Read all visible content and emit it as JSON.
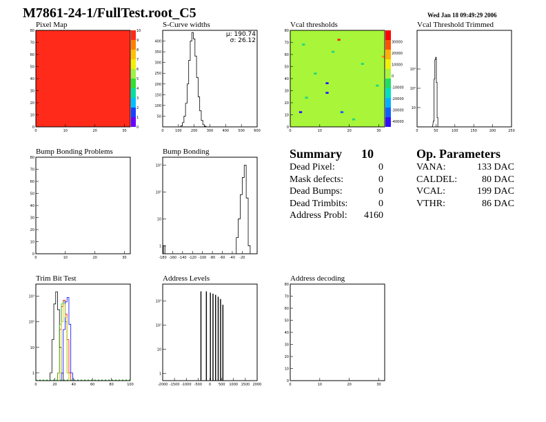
{
  "header": {
    "title": "M7861-24-1/FullTest.root_C5",
    "date": "Wed Jan 18 09:49:29 2006"
  },
  "summary": {
    "title": "Summary",
    "total": "10",
    "rows": [
      {
        "label": "Dead Pixel:",
        "value": "0"
      },
      {
        "label": "Mask defects:",
        "value": "0"
      },
      {
        "label": "Dead Bumps:",
        "value": "0"
      },
      {
        "label": "Dead Trimbits:",
        "value": "0"
      },
      {
        "label": "Address Probl:",
        "value": "4160"
      }
    ]
  },
  "op_parameters": {
    "title": "Op. Parameters",
    "rows": [
      {
        "label": "VANA:",
        "value": "133 DAC"
      },
      {
        "label": "CALDEL:",
        "value": "80 DAC"
      },
      {
        "label": "VCAL:",
        "value": "199 DAC"
      },
      {
        "label": "VTHR:",
        "value": "86 DAC"
      }
    ]
  },
  "colors": {
    "pixel_map_fill": "#ff2a1a",
    "vcal_fill": "#a8f53a",
    "trim_bit_black": "#000000",
    "trim_bit_red": "#ff0000",
    "trim_bit_green": "#22bb22",
    "trim_bit_blue": "#0000ff",
    "trim_bit_yellow": "#cccc00"
  },
  "chart_data": [
    {
      "id": "pixel_map",
      "type": "heatmap",
      "title": "Pixel Map",
      "xlim": [
        0,
        32
      ],
      "ylim": [
        0,
        80
      ],
      "xticks": [
        "0",
        "10",
        "20",
        "30"
      ],
      "yticks": [
        "0",
        "10",
        "20",
        "30",
        "40",
        "50",
        "60",
        "70",
        "80"
      ],
      "zticks": [
        "0",
        "1",
        "2",
        "3",
        "4",
        "5",
        "6",
        "7",
        "8",
        "9",
        "10"
      ],
      "value_all_pixels": 10
    },
    {
      "id": "scurve_widths",
      "type": "line",
      "title": "S-Curve widths",
      "xlim": [
        0,
        600
      ],
      "ylim": [
        0,
        450
      ],
      "xticks": [
        "0",
        "100",
        "200",
        "300",
        "400",
        "500",
        "600"
      ],
      "yticks": [
        "50",
        "100",
        "150",
        "200",
        "250",
        "300",
        "350",
        "400"
      ],
      "stats": [
        "μ: 190.74",
        "σ: 26.12"
      ],
      "x": [
        120,
        130,
        140,
        150,
        160,
        170,
        180,
        190,
        200,
        210,
        220,
        230,
        240,
        250,
        260,
        270
      ],
      "values": [
        5,
        20,
        50,
        110,
        200,
        310,
        400,
        440,
        410,
        330,
        230,
        140,
        75,
        30,
        10,
        3
      ]
    },
    {
      "id": "vcal_thresholds",
      "type": "heatmap",
      "title": "Vcal thresholds",
      "xlim": [
        0,
        32
      ],
      "ylim": [
        0,
        80
      ],
      "xticks": [
        "0",
        "10",
        "20",
        "30"
      ],
      "yticks": [
        "0",
        "10",
        "20",
        "30",
        "40",
        "50",
        "60",
        "70",
        "80"
      ],
      "zticks": [
        "-40000",
        "-30000",
        "-20000",
        "-10000",
        "0",
        "10000",
        "20000",
        "30000"
      ],
      "bulk_value": 0,
      "outliers": [
        {
          "x": 3,
          "y": 12,
          "z": -40000
        },
        {
          "x": 12,
          "y": 36,
          "z": -35000
        },
        {
          "x": 16,
          "y": 72,
          "z": 36000
        },
        {
          "x": 17,
          "y": 12,
          "z": -30000
        },
        {
          "x": 8,
          "y": 44,
          "z": -12000
        },
        {
          "x": 24,
          "y": 52,
          "z": -10000
        },
        {
          "x": 29,
          "y": 34,
          "z": -14000
        },
        {
          "x": 4,
          "y": 68,
          "z": -8000
        },
        {
          "x": 21,
          "y": 6,
          "z": -9000
        },
        {
          "x": 14,
          "y": 62,
          "z": -10000
        },
        {
          "x": 31,
          "y": 58,
          "z": 30000
        },
        {
          "x": 5,
          "y": 24,
          "z": -6000
        },
        {
          "x": 12,
          "y": 28,
          "z": -40000
        }
      ]
    },
    {
      "id": "vcal_threshold_trimmed",
      "type": "line",
      "title": "Vcal Threshold Trimmed",
      "xlim": [
        0,
        250
      ],
      "ylog": true,
      "ylim": [
        1,
        100000
      ],
      "xticks": [
        "0",
        "50",
        "100",
        "150",
        "200",
        "250"
      ],
      "yticks": [
        "10",
        "10²",
        "10³"
      ],
      "x": [
        40,
        44,
        46,
        48,
        50,
        52,
        54,
        56
      ],
      "values": [
        1,
        2,
        300,
        3000,
        4000,
        200,
        3,
        1
      ]
    },
    {
      "id": "bump_bonding_problems",
      "type": "heatmap",
      "title": "Bump Bonding Problems",
      "xlim": [
        0,
        32
      ],
      "ylim": [
        0,
        80
      ],
      "xticks": [
        "0",
        "10",
        "20",
        "30"
      ],
      "yticks": [
        "0",
        "10",
        "20",
        "30",
        "40",
        "50",
        "60",
        "70",
        "80"
      ]
    },
    {
      "id": "bump_bonding",
      "type": "line",
      "title": "Bump Bonding",
      "xlim": [
        -180,
        10
      ],
      "ylog": true,
      "ylim": [
        0.5,
        2000
      ],
      "xticks": [
        "-180",
        "-160",
        "-140",
        "-120",
        "-100",
        "-80",
        "-60",
        "-40",
        "-20"
      ],
      "yticks": [
        "1",
        "10",
        "10²",
        "10³"
      ],
      "x": [
        -177,
        -30,
        -26,
        -22,
        -18,
        -14,
        -10,
        -6
      ],
      "values": [
        1,
        2,
        10,
        80,
        350,
        1000,
        60,
        1
      ]
    },
    {
      "id": "trim_bit_test",
      "type": "line",
      "title": "Trim Bit Test",
      "xlim": [
        0,
        100
      ],
      "ylog": true,
      "ylim": [
        0.5,
        3000
      ],
      "xticks": [
        "0",
        "20",
        "40",
        "60",
        "80",
        "100"
      ],
      "yticks": [
        "1",
        "10",
        "10²",
        "10³"
      ],
      "series": [
        {
          "color": "black",
          "x": [
            16,
            18,
            20,
            22,
            24,
            26,
            28
          ],
          "values": [
            1,
            20,
            500,
            1500,
            300,
            10,
            1
          ]
        },
        {
          "color": "red",
          "x": [
            24,
            26,
            28,
            30,
            32,
            34,
            36
          ],
          "values": [
            1,
            50,
            400,
            700,
            200,
            20,
            1
          ]
        },
        {
          "color": "green",
          "x": [
            24,
            26,
            28,
            30,
            32,
            34
          ],
          "values": [
            1,
            80,
            500,
            600,
            100,
            1
          ]
        },
        {
          "color": "blue",
          "x": [
            28,
            30,
            32,
            34,
            36,
            38
          ],
          "values": [
            1,
            50,
            600,
            900,
            80,
            1
          ]
        },
        {
          "color": "yellow",
          "x": [
            26,
            28,
            30,
            32,
            34
          ],
          "values": [
            1,
            100,
            500,
            150,
            1
          ]
        }
      ]
    },
    {
      "id": "address_levels",
      "type": "line",
      "title": "Address Levels",
      "xlim": [
        -2000,
        2000
      ],
      "ylog": true,
      "ylim": [
        0.5,
        5000
      ],
      "xticks": [
        "-2000",
        "-1500",
        "-1000",
        "-500",
        "0",
        "500",
        "1000",
        "1500",
        "2000"
      ],
      "yticks": [
        "1",
        "10",
        "10²",
        "10³"
      ],
      "x": [
        -380,
        -150,
        20,
        130,
        240,
        350,
        450,
        550
      ],
      "values": [
        2500,
        2500,
        2200,
        2000,
        1800,
        1500,
        1200,
        700
      ]
    },
    {
      "id": "address_decoding",
      "type": "heatmap",
      "title": "Address decoding",
      "xlim": [
        0,
        32
      ],
      "ylim": [
        0,
        80
      ],
      "xticks": [
        "0",
        "10",
        "20",
        "30"
      ],
      "yticks": [
        "0",
        "10",
        "20",
        "30",
        "40",
        "50",
        "60",
        "70",
        "80"
      ]
    }
  ]
}
